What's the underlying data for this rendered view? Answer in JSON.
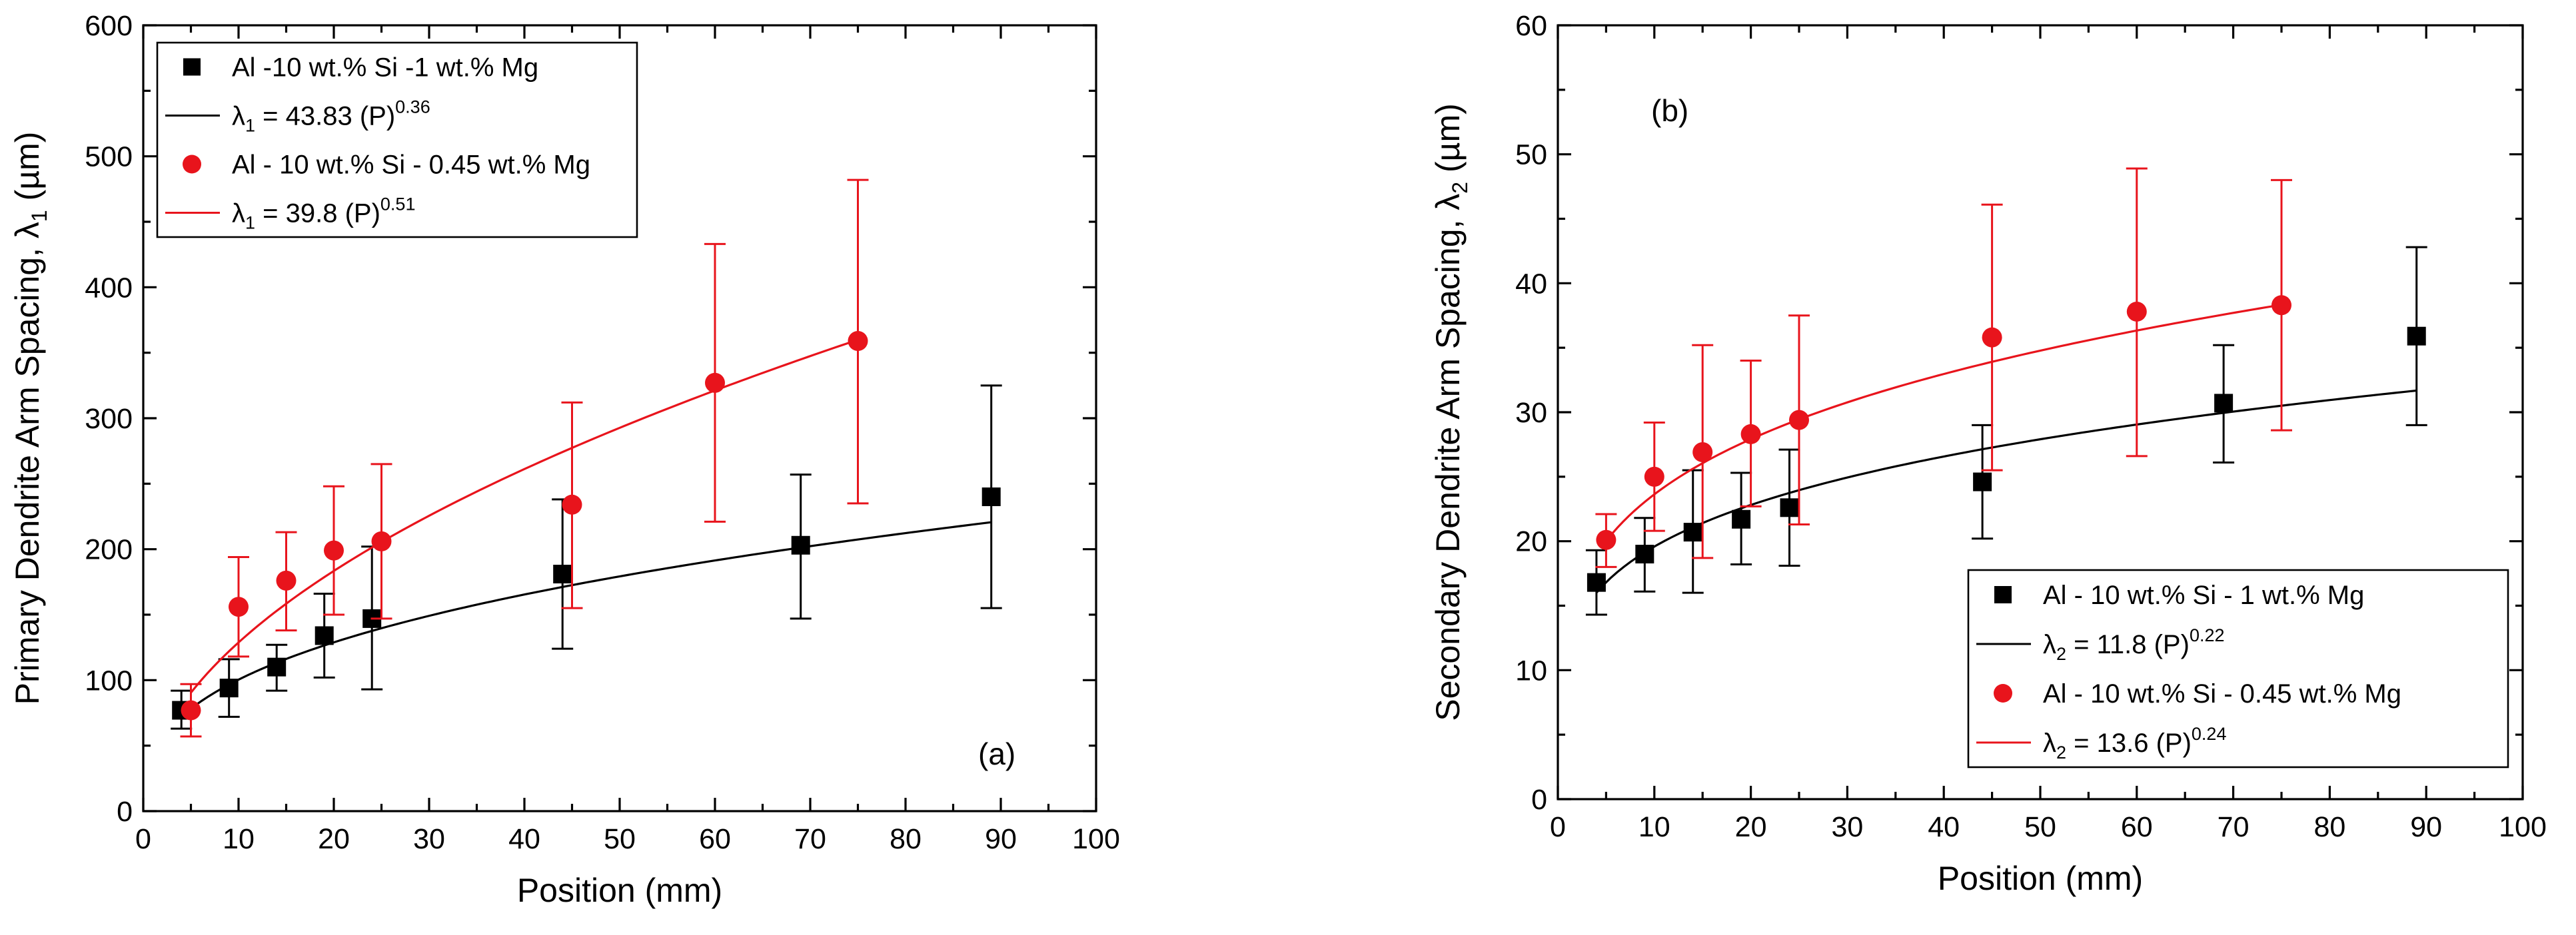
{
  "chart_data": [
    {
      "type": "scatter",
      "panel_label": "(a)",
      "xlabel": "Position (mm)",
      "ylabel": "Primary Dendrite Arm Spacing, λ1 (µm)",
      "ylabel_parts": {
        "main": "Primary Dendrite Arm Spacing, λ",
        "sub": "1",
        "unit": " (µm)"
      },
      "xlim": [
        0,
        100
      ],
      "ylim": [
        0,
        600
      ],
      "xticks": [
        0,
        10,
        20,
        30,
        40,
        50,
        60,
        70,
        80,
        90,
        100
      ],
      "yticks": [
        0,
        100,
        200,
        300,
        400,
        500,
        600
      ],
      "legend_position": "top-left",
      "series": [
        {
          "name": "Al -10 wt.% Si -1 wt.% Mg",
          "color": "#000000",
          "marker": "square",
          "x": [
            4,
            9,
            14,
            19,
            24,
            44,
            69,
            89
          ],
          "y": [
            77,
            94,
            110,
            134,
            147,
            181,
            203,
            240
          ],
          "err_low": [
            63,
            72,
            92,
            102,
            93,
            124,
            147,
            155
          ],
          "err_high": [
            92,
            116,
            127,
            166,
            202,
            238,
            257,
            325
          ],
          "fit": {
            "a": 43.83,
            "b": 0.36,
            "x_range": [
              4,
              89
            ],
            "label": "λ1 = 43.83 (P)^0.36",
            "label_parts": {
              "pre": "λ",
              "sub": "1",
              "mid": " = 43.83 (P)",
              "sup": "0.36"
            }
          }
        },
        {
          "name": "Al - 10 wt.% Si - 0.45 wt.% Mg",
          "color": "#e8141c",
          "marker": "circle",
          "x": [
            5,
            10,
            15,
            20,
            25,
            45,
            60,
            75
          ],
          "y": [
            77,
            156,
            176,
            199,
            206,
            234,
            327,
            359
          ],
          "err_low": [
            57,
            118,
            138,
            150,
            147,
            155,
            221,
            235
          ],
          "err_high": [
            97,
            194,
            213,
            248,
            265,
            312,
            433,
            482
          ],
          "fit": {
            "a": 39.8,
            "b": 0.51,
            "x_range": [
              5,
              75
            ],
            "label": "λ1 = 39.8 (P)^0.51",
            "label_parts": {
              "pre": "λ",
              "sub": "1",
              "mid": " = 39.8 (P)",
              "sup": "0.51"
            }
          }
        }
      ]
    },
    {
      "type": "scatter",
      "panel_label": "(b)",
      "xlabel": "Position (mm)",
      "ylabel": "Secondary Dendrite Arm Spacing, λ2 (µm)",
      "ylabel_parts": {
        "main": "Secondary Dendrite Arm Spacing, λ",
        "sub": "2",
        "unit": " (µm)"
      },
      "xlim": [
        0,
        100
      ],
      "ylim": [
        0,
        60
      ],
      "xticks": [
        0,
        10,
        20,
        30,
        40,
        50,
        60,
        70,
        80,
        90,
        100
      ],
      "yticks": [
        0,
        10,
        20,
        30,
        40,
        50,
        60
      ],
      "legend_position": "bottom-right",
      "series": [
        {
          "name": "Al - 10 wt.% Si - 1 wt.% Mg",
          "color": "#000000",
          "marker": "square",
          "x": [
            4,
            9,
            14,
            19,
            24,
            44,
            69,
            89
          ],
          "y": [
            16.8,
            19,
            20.7,
            21.7,
            22.6,
            24.6,
            30.7,
            35.9
          ],
          "err_low": [
            14.3,
            16.1,
            16,
            18.2,
            18.1,
            20.2,
            26.1,
            29
          ],
          "err_high": [
            19.3,
            21.8,
            25.5,
            25.3,
            27.1,
            29,
            35.2,
            42.8
          ],
          "fit": {
            "a": 11.8,
            "b": 0.22,
            "x_range": [
              4,
              89
            ],
            "label": "λ2 = 11.8 (P)^0.22",
            "label_parts": {
              "pre": "λ",
              "sub": "2",
              "mid": " = 11.8 (P)",
              "sup": "0.22"
            }
          }
        },
        {
          "name": "Al - 10 wt.% Si - 0.45 wt.% Mg",
          "color": "#e8141c",
          "marker": "circle",
          "x": [
            5,
            10,
            15,
            20,
            25,
            45,
            60,
            75
          ],
          "y": [
            20.1,
            25,
            26.9,
            28.3,
            29.4,
            35.8,
            37.8,
            38.3
          ],
          "err_low": [
            18,
            20.8,
            18.7,
            22.7,
            21.3,
            25.5,
            26.6,
            28.6
          ],
          "err_high": [
            22.1,
            29.2,
            35.2,
            34,
            37.5,
            46.1,
            48.9,
            48
          ],
          "fit": {
            "a": 13.6,
            "b": 0.24,
            "x_range": [
              5,
              75
            ],
            "label": "λ2 = 13.6 (P)^0.24",
            "label_parts": {
              "pre": "λ",
              "sub": "2",
              "mid": " = 13.6 (P)",
              "sup": "0.24"
            }
          }
        }
      ]
    }
  ]
}
